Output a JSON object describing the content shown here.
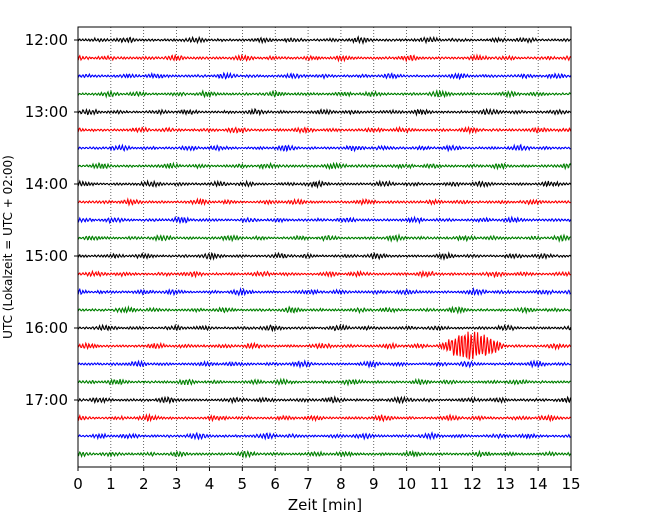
{
  "chart_data": {
    "type": "line",
    "title": "",
    "xlabel": "Zeit  [min]",
    "ylabel": "UTC (Lokalzeit = UTC + 02:00)",
    "xlim": [
      0,
      15
    ],
    "x_ticks": [
      "0",
      "1",
      "2",
      "3",
      "4",
      "5",
      "6",
      "7",
      "8",
      "9",
      "10",
      "11",
      "12",
      "13",
      "14",
      "15"
    ],
    "y_ticks": [
      "12:00",
      "13:00",
      "14:00",
      "15:00",
      "16:00",
      "17:00"
    ],
    "grid": "vertical dotted",
    "trace_colors": [
      "#000000",
      "#ff0000",
      "#0000ff",
      "#008000"
    ],
    "trace_start_times": [
      "12:00",
      "12:15",
      "12:30",
      "12:45",
      "13:00",
      "13:15",
      "13:30",
      "13:45",
      "14:00",
      "14:15",
      "14:30",
      "14:45",
      "15:00",
      "15:15",
      "15:30",
      "15:45",
      "16:00",
      "16:15",
      "16:30",
      "16:45",
      "17:00",
      "17:15",
      "17:30",
      "17:45"
    ],
    "events": [
      {
        "trace_start": "16:15",
        "x_start_min": 10.9,
        "x_peak_min": 11.8,
        "x_end_min": 13.0,
        "relative_amplitude": 6
      }
    ]
  }
}
